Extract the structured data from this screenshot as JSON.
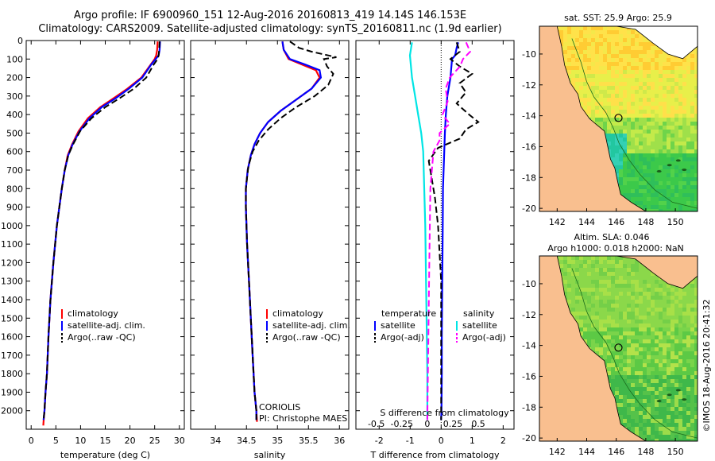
{
  "header": {
    "line1": "Argo profile: IF 6900960_151 12-Aug-2016 20160813_419 14.14S 146.153E",
    "line2": "Climatology: CARS2009. Satellite-adjusted climatology: synTS_20160811.nc (1.9d earlier)"
  },
  "chart_data": [
    {
      "type": "line",
      "xlabel": "temperature (deg C)",
      "ylabel": "",
      "xlim": [
        -1,
        31
      ],
      "ylim": [
        2100,
        0
      ],
      "xticks": [
        "0",
        "5",
        "10",
        "15",
        "20",
        "25",
        "30"
      ],
      "yticks": [
        "0",
        "100",
        "200",
        "300",
        "400",
        "500",
        "600",
        "700",
        "800",
        "900",
        "1000",
        "1100",
        "1200",
        "1300",
        "1400",
        "1500",
        "1600",
        "1700",
        "1800",
        "1900",
        "2000"
      ],
      "legend": [
        "climatology",
        "satellite-adj. clim.",
        "Argo(..raw -QC)"
      ],
      "series": [
        {
          "name": "climatology",
          "color": "#ff0000",
          "x": [
            25.6,
            25.5,
            25.3,
            25.0,
            24.2,
            22.3,
            19.5,
            16.8,
            14.0,
            11.5,
            9.6,
            8.3,
            7.4,
            6.8,
            6.2,
            5.2,
            4.5,
            3.9,
            3.5,
            3.2,
            2.9,
            2.7,
            2.5,
            2.45
          ],
          "y": [
            5,
            50,
            80,
            100,
            130,
            200,
            260,
            310,
            360,
            420,
            490,
            560,
            620,
            700,
            800,
            1000,
            1200,
            1400,
            1600,
            1800,
            1900,
            2000,
            2060,
            2080
          ]
        },
        {
          "name": "satellite-adj. clim.",
          "color": "#0000ff",
          "x": [
            26.1,
            26.0,
            25.8,
            25.2,
            24.3,
            22.5,
            19.8,
            17.2,
            14.3,
            11.8,
            9.8,
            8.4,
            7.5,
            6.8,
            6.2,
            5.2,
            4.5,
            3.9,
            3.5,
            3.2,
            2.9,
            2.7,
            2.5
          ],
          "y": [
            5,
            50,
            80,
            100,
            130,
            200,
            260,
            310,
            360,
            420,
            490,
            560,
            620,
            700,
            800,
            1000,
            1200,
            1400,
            1600,
            1800,
            1900,
            2000,
            2050
          ]
        },
        {
          "name": "Argo(..raw -QC)",
          "color": "#000000",
          "x": [
            26.0,
            25.9,
            25.8,
            25.6,
            24.8,
            23.3,
            20.8,
            18.0,
            15.0,
            12.2,
            9.9,
            8.5,
            7.5,
            6.8,
            6.2,
            5.2,
            4.5,
            3.9,
            3.5,
            3.2,
            2.9,
            2.7,
            2.5
          ],
          "y": [
            5,
            50,
            80,
            100,
            130,
            200,
            260,
            310,
            360,
            420,
            490,
            560,
            620,
            700,
            800,
            1000,
            1200,
            1400,
            1600,
            1800,
            1900,
            2000,
            2050
          ]
        }
      ]
    },
    {
      "type": "line",
      "xlabel": "salinity",
      "ylabel": "",
      "xlim": [
        33.6,
        36.15
      ],
      "ylim": [
        2100,
        0
      ],
      "xticks": [
        "34",
        "34.5",
        "35",
        "35.5",
        "36"
      ],
      "legend": [
        "climatology",
        "satellite-adj. clim.",
        "Argo(..raw -QC)"
      ],
      "annotation": [
        "CORIOLIS",
        "PI: Christophe MAES"
      ],
      "series": [
        {
          "name": "climatology",
          "color": "#ff0000",
          "x": [
            35.08,
            35.1,
            35.18,
            35.4,
            35.62,
            35.68,
            35.55,
            35.3,
            35.05,
            34.85,
            34.72,
            34.63,
            34.57,
            34.52,
            34.49,
            34.49,
            34.51,
            34.54,
            34.57,
            34.6,
            34.63,
            34.66,
            34.67
          ],
          "y": [
            5,
            50,
            100,
            130,
            160,
            200,
            260,
            320,
            380,
            440,
            500,
            560,
            620,
            700,
            800,
            900,
            1100,
            1300,
            1500,
            1700,
            1900,
            2000,
            2060
          ]
        },
        {
          "name": "satellite-adj. clim.",
          "color": "#0000ff",
          "x": [
            35.08,
            35.1,
            35.2,
            35.45,
            35.68,
            35.7,
            35.55,
            35.3,
            35.05,
            34.85,
            34.72,
            34.63,
            34.57,
            34.52,
            34.49,
            34.49,
            34.51,
            34.54,
            34.57,
            34.6,
            34.63,
            34.66,
            34.66
          ],
          "y": [
            5,
            50,
            100,
            130,
            160,
            200,
            260,
            320,
            380,
            440,
            500,
            560,
            620,
            700,
            800,
            900,
            1100,
            1300,
            1500,
            1700,
            1900,
            2000,
            2050
          ]
        },
        {
          "name": "Argo(..raw -QC)",
          "color": "#000000",
          "x": [
            35.2,
            35.35,
            35.55,
            35.95,
            35.75,
            35.8,
            35.9,
            35.82,
            35.6,
            35.3,
            35.05,
            34.85,
            34.7,
            34.6,
            34.53,
            34.49,
            34.49,
            34.51,
            34.54,
            34.57,
            34.6,
            34.63,
            34.66,
            34.66
          ],
          "y": [
            5,
            40,
            60,
            90,
            100,
            140,
            180,
            240,
            300,
            360,
            420,
            480,
            540,
            600,
            680,
            800,
            900,
            1100,
            1300,
            1500,
            1700,
            1900,
            2000,
            2050
          ]
        }
      ]
    },
    {
      "type": "line",
      "xlabel": "T difference from climatology",
      "xlabel_top": "S difference from climatology",
      "xlim": [
        -2.75,
        2.35
      ],
      "xlim_top": [
        -0.7,
        0.85
      ],
      "ylim": [
        2100,
        0
      ],
      "xticks": [
        "-2",
        "-1",
        "0",
        "1",
        "2"
      ],
      "xticks_top": [
        "-0.5",
        "-0.25",
        "0",
        "0.25",
        "0.5"
      ],
      "legend_left_title": "temperature",
      "legend_right_title": "salinity",
      "legend": [
        "satellite",
        "Argo(-adj)",
        "satellite",
        "Argo(-adj)"
      ],
      "series": [
        {
          "name": "temperature satellite",
          "color": "#0000ff",
          "x": [
            0.55,
            0.5,
            0.45,
            0.35,
            0.3,
            0.2,
            0.15,
            0.12,
            0.1,
            0.08,
            0.06,
            0.05,
            0.04,
            0.03,
            0.02,
            0.02,
            0.01,
            0.0
          ],
          "y": [
            10,
            40,
            80,
            100,
            200,
            300,
            400,
            500,
            600,
            700,
            800,
            1000,
            1200,
            1400,
            1600,
            1800,
            2000,
            2050
          ]
        },
        {
          "name": "temperature Argo(-adj)",
          "color": "#000000",
          "x": [
            0.5,
            0.6,
            0.3,
            0.6,
            1.0,
            0.6,
            0.8,
            0.5,
            0.9,
            1.2,
            0.8,
            0.6,
            -0.1,
            -0.4,
            -0.3,
            -0.2,
            -0.1,
            0.0,
            0.0,
            0.0
          ],
          "y": [
            10,
            60,
            100,
            140,
            180,
            230,
            280,
            340,
            400,
            440,
            480,
            530,
            580,
            650,
            750,
            850,
            1000,
            1300,
            1700,
            2050
          ]
        },
        {
          "name": "salinity satellite",
          "color": "#00e5e5",
          "x": [
            -0.15,
            -0.17,
            -0.15,
            -0.12,
            -0.09,
            -0.06,
            -0.04,
            -0.03,
            -0.02,
            -0.01,
            0.0,
            0.0
          ],
          "y": [
            10,
            80,
            200,
            300,
            400,
            500,
            600,
            800,
            1000,
            1400,
            1800,
            2050
          ]
        },
        {
          "name": "salinity Argo(-adj)",
          "color": "#ff00ff",
          "x": [
            0.38,
            0.42,
            0.35,
            0.32,
            0.22,
            0.18,
            0.2,
            0.15,
            0.22,
            0.12,
            0.12,
            0.06,
            0.03,
            0.02,
            0.01,
            0.0
          ],
          "y": [
            10,
            60,
            100,
            140,
            200,
            260,
            330,
            400,
            450,
            500,
            540,
            600,
            800,
            1200,
            1600,
            2050
          ]
        }
      ]
    }
  ],
  "maps": {
    "top": {
      "title": "sat. SST: 25.9 Argo: 25.9",
      "xticks": [
        "142",
        "144",
        "146",
        "148",
        "150"
      ],
      "yticks": [
        "-10",
        "-12",
        "-14",
        "-16",
        "-18",
        "-20"
      ],
      "xlim": [
        140.8,
        151.5
      ],
      "ylim": [
        -20.2,
        -8.2
      ],
      "marker": {
        "lon": 146.15,
        "lat": -14.14
      }
    },
    "bottom": {
      "title1": "Altim. SLA: 0.046",
      "title2": "Argo h1000: 0.018 h2000: NaN",
      "xticks": [
        "142",
        "144",
        "146",
        "148",
        "150"
      ],
      "yticks": [
        "-10",
        "-12",
        "-14",
        "-16",
        "-18",
        "-20"
      ],
      "xlim": [
        140.8,
        151.5
      ],
      "ylim": [
        -20.2,
        -8.2
      ],
      "marker": {
        "lon": 146.15,
        "lat": -14.14
      }
    },
    "land_color": "#f9bf8f"
  },
  "stamp": "©IMOS 18-Aug-2016 20:41:32"
}
